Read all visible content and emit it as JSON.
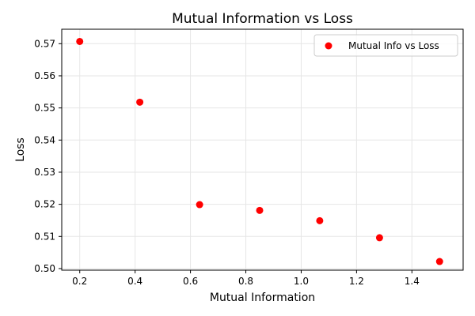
{
  "chart_data": {
    "type": "scatter",
    "title": "Mutual Information vs Loss",
    "xlabel": "Mutual Information",
    "ylabel": "Loss",
    "xlim": [
      0.135,
      1.585
    ],
    "ylim": [
      0.4995,
      0.5745
    ],
    "xticks": [
      0.2,
      0.4,
      0.6,
      0.8,
      1.0,
      1.2,
      1.4
    ],
    "xtick_labels": [
      "0.2",
      "0.4",
      "0.6",
      "0.8",
      "1.0",
      "1.2",
      "1.4"
    ],
    "yticks": [
      0.5,
      0.51,
      0.52,
      0.53,
      0.54,
      0.55,
      0.56,
      0.57
    ],
    "ytick_labels": [
      "0.50",
      "0.51",
      "0.52",
      "0.53",
      "0.54",
      "0.55",
      "0.56",
      "0.57"
    ],
    "grid": true,
    "legend_position": "top-right",
    "series": [
      {
        "name": "Mutual Info vs Loss",
        "color": "#ff0000",
        "x": [
          0.2,
          0.417,
          0.633,
          0.85,
          1.067,
          1.283,
          1.5
        ],
        "y": [
          0.5707,
          0.5518,
          0.5199,
          0.5181,
          0.5149,
          0.5096,
          0.5022
        ]
      }
    ]
  }
}
